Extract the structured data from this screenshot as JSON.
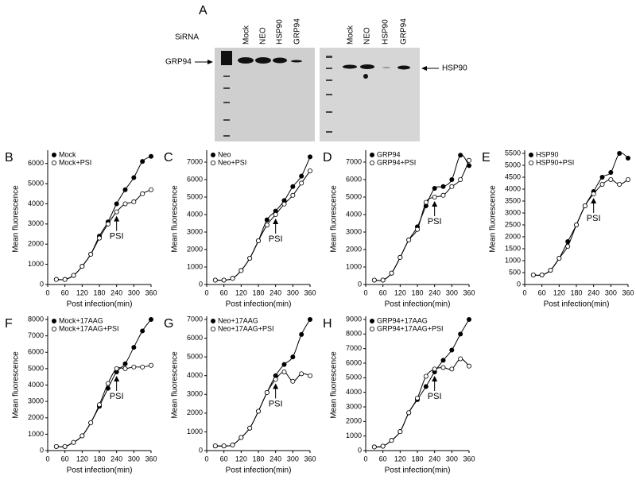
{
  "blot": {
    "panel": "A",
    "sirna_label": "SiRNA",
    "lanes_left": [
      "Mock",
      "NEO",
      "HSP90",
      "GRP94"
    ],
    "lanes_right": [
      "Mock",
      "NEO",
      "HSP90",
      "GRP94"
    ],
    "left_label": "GRP94",
    "right_label": "HSP90"
  },
  "chart_data": [
    {
      "type": "line",
      "panel": "B",
      "xlabel": "Post infection(min)",
      "ylabel": "Mean fluorescence",
      "x": [
        30,
        60,
        90,
        120,
        150,
        180,
        210,
        240,
        270,
        300,
        330,
        360
      ],
      "xlim": [
        0,
        360
      ],
      "xticks": [
        0,
        60,
        120,
        180,
        240,
        300,
        360
      ],
      "ylim": [
        0,
        6500
      ],
      "yticks": [
        0,
        1000,
        2000,
        3000,
        4000,
        5000,
        6000
      ],
      "annotation": {
        "text": "PSI",
        "x": 240
      },
      "series": [
        {
          "name": "Mock",
          "color": "#000000",
          "marker": "filled",
          "values": [
            250,
            250,
            450,
            900,
            1500,
            2400,
            3100,
            4000,
            4700,
            5300,
            6100,
            6350
          ]
        },
        {
          "name": "Mock+PSI",
          "color": "#000000",
          "marker": "open",
          "values": [
            250,
            250,
            450,
            900,
            1500,
            2300,
            3000,
            3600,
            4000,
            4100,
            4500,
            4700
          ]
        }
      ]
    },
    {
      "type": "line",
      "panel": "C",
      "xlabel": "Post infection(min)",
      "ylabel": "Mean fluorescence",
      "x": [
        30,
        60,
        90,
        120,
        150,
        180,
        210,
        240,
        270,
        300,
        330,
        360
      ],
      "xlim": [
        0,
        360
      ],
      "xticks": [
        0,
        60,
        120,
        180,
        240,
        300,
        360
      ],
      "ylim": [
        0,
        7500
      ],
      "yticks": [
        0,
        1000,
        2000,
        3000,
        4000,
        5000,
        6000,
        7000
      ],
      "annotation": {
        "text": "PSI",
        "x": 240
      },
      "series": [
        {
          "name": "Neo",
          "color": "#000000",
          "marker": "filled",
          "values": [
            250,
            250,
            350,
            800,
            1500,
            2500,
            3700,
            4200,
            4800,
            5600,
            6200,
            7300
          ]
        },
        {
          "name": "Neo+PSI",
          "color": "#000000",
          "marker": "open",
          "values": [
            250,
            250,
            350,
            800,
            1500,
            2500,
            3400,
            4000,
            4600,
            5100,
            5800,
            6500
          ]
        }
      ]
    },
    {
      "type": "line",
      "panel": "D",
      "xlabel": "Post infection(min)",
      "ylabel": "Mean fluorescence",
      "x": [
        30,
        60,
        90,
        120,
        150,
        180,
        210,
        240,
        270,
        300,
        330,
        360
      ],
      "xlim": [
        0,
        360
      ],
      "xticks": [
        0,
        60,
        120,
        180,
        240,
        300,
        360
      ],
      "ylim": [
        0,
        7500
      ],
      "yticks": [
        0,
        1000,
        2000,
        3000,
        4000,
        5000,
        6000,
        7000
      ],
      "annotation": {
        "text": "PSI",
        "x": 240
      },
      "series": [
        {
          "name": "GRP94",
          "color": "#000000",
          "marker": "filled",
          "values": [
            250,
            250,
            650,
            1550,
            2550,
            3300,
            4500,
            5500,
            5600,
            6000,
            7400,
            6800
          ]
        },
        {
          "name": "GRP94+PSI",
          "color": "#000000",
          "marker": "open",
          "values": [
            250,
            250,
            650,
            1550,
            2550,
            3150,
            4700,
            5000,
            5100,
            5600,
            6000,
            7100
          ]
        }
      ]
    },
    {
      "type": "line",
      "panel": "E",
      "xlabel": "Post infection(min)",
      "ylabel": "Mean fluorescence",
      "x": [
        30,
        60,
        90,
        120,
        150,
        180,
        210,
        240,
        270,
        300,
        330,
        360
      ],
      "xlim": [
        0,
        360
      ],
      "xticks": [
        0,
        60,
        120,
        180,
        240,
        300,
        360
      ],
      "ylim": [
        0,
        5500
      ],
      "yticks": [
        0,
        500,
        1000,
        1500,
        2000,
        2500,
        3000,
        3500,
        4000,
        4500,
        5000,
        5500
      ],
      "annotation": {
        "text": "PSI",
        "x": 240
      },
      "series": [
        {
          "name": "HSP90",
          "color": "#000000",
          "marker": "filled",
          "values": [
            400,
            400,
            600,
            1100,
            1800,
            2500,
            3300,
            3900,
            4500,
            4700,
            5500,
            5300
          ]
        },
        {
          "name": "HSP90+PSI",
          "color": "#000000",
          "marker": "open",
          "values": [
            400,
            400,
            600,
            1100,
            1600,
            2500,
            3300,
            3800,
            4200,
            4400,
            4200,
            4400
          ]
        }
      ]
    },
    {
      "type": "line",
      "panel": "F",
      "xlabel": "Post infection(min)",
      "ylabel": "Mean fluorescence",
      "x": [
        30,
        60,
        90,
        120,
        150,
        180,
        210,
        240,
        270,
        300,
        330,
        360
      ],
      "xlim": [
        0,
        360
      ],
      "xticks": [
        0,
        60,
        120,
        180,
        240,
        300,
        360
      ],
      "ylim": [
        0,
        8000
      ],
      "yticks": [
        0,
        1000,
        2000,
        3000,
        4000,
        5000,
        6000,
        7000,
        8000
      ],
      "annotation": {
        "text": "PSI",
        "x": 240
      },
      "series": [
        {
          "name": "Mock+17AAG",
          "color": "#000000",
          "marker": "filled",
          "values": [
            250,
            250,
            500,
            900,
            1700,
            2700,
            3800,
            4800,
            5300,
            6300,
            7300,
            8000
          ]
        },
        {
          "name": "Mock+17AAG+PSI",
          "color": "#000000",
          "marker": "open",
          "values": [
            250,
            250,
            500,
            900,
            1700,
            2800,
            4100,
            5000,
            5000,
            5100,
            5100,
            5200
          ]
        }
      ]
    },
    {
      "type": "line",
      "panel": "G",
      "xlabel": "Post infection(min)",
      "ylabel": "Mean fluorescence",
      "x": [
        30,
        60,
        90,
        120,
        150,
        180,
        210,
        240,
        270,
        300,
        330,
        360
      ],
      "xlim": [
        0,
        360
      ],
      "xticks": [
        0,
        60,
        120,
        180,
        240,
        300,
        360
      ],
      "ylim": [
        0,
        7000
      ],
      "yticks": [
        0,
        1000,
        2000,
        3000,
        4000,
        5000,
        6000,
        7000
      ],
      "annotation": {
        "text": "PSI",
        "x": 240
      },
      "series": [
        {
          "name": "Neo+17AAG",
          "color": "#000000",
          "marker": "filled",
          "values": [
            250,
            250,
            300,
            700,
            1200,
            2100,
            3100,
            4000,
            4600,
            5000,
            6200,
            7000
          ]
        },
        {
          "name": "Neo+17AAG+PSI",
          "color": "#000000",
          "marker": "open",
          "values": [
            250,
            250,
            300,
            700,
            1200,
            2100,
            3100,
            3800,
            4200,
            3700,
            4100,
            4000
          ]
        }
      ]
    },
    {
      "type": "line",
      "panel": "H",
      "xlabel": "Post infection(min)",
      "ylabel": "Mean fluorescence",
      "x": [
        30,
        60,
        90,
        120,
        150,
        180,
        210,
        240,
        270,
        300,
        330,
        360
      ],
      "xlim": [
        0,
        360
      ],
      "xticks": [
        0,
        60,
        120,
        180,
        240,
        300,
        360
      ],
      "ylim": [
        0,
        9000
      ],
      "yticks": [
        0,
        1000,
        2000,
        3000,
        4000,
        5000,
        6000,
        7000,
        8000,
        9000
      ],
      "annotation": {
        "text": "PSI",
        "x": 240
      },
      "series": [
        {
          "name": "GRP94+17AAG",
          "color": "#000000",
          "marker": "filled",
          "values": [
            250,
            300,
            700,
            1300,
            2600,
            3500,
            4400,
            5400,
            6200,
            6900,
            8000,
            9000
          ]
        },
        {
          "name": "GRP94+17AAG+PSI",
          "color": "#000000",
          "marker": "open",
          "values": [
            250,
            300,
            700,
            1300,
            2600,
            3600,
            5100,
            5600,
            5700,
            5600,
            6300,
            5800
          ]
        }
      ]
    }
  ]
}
